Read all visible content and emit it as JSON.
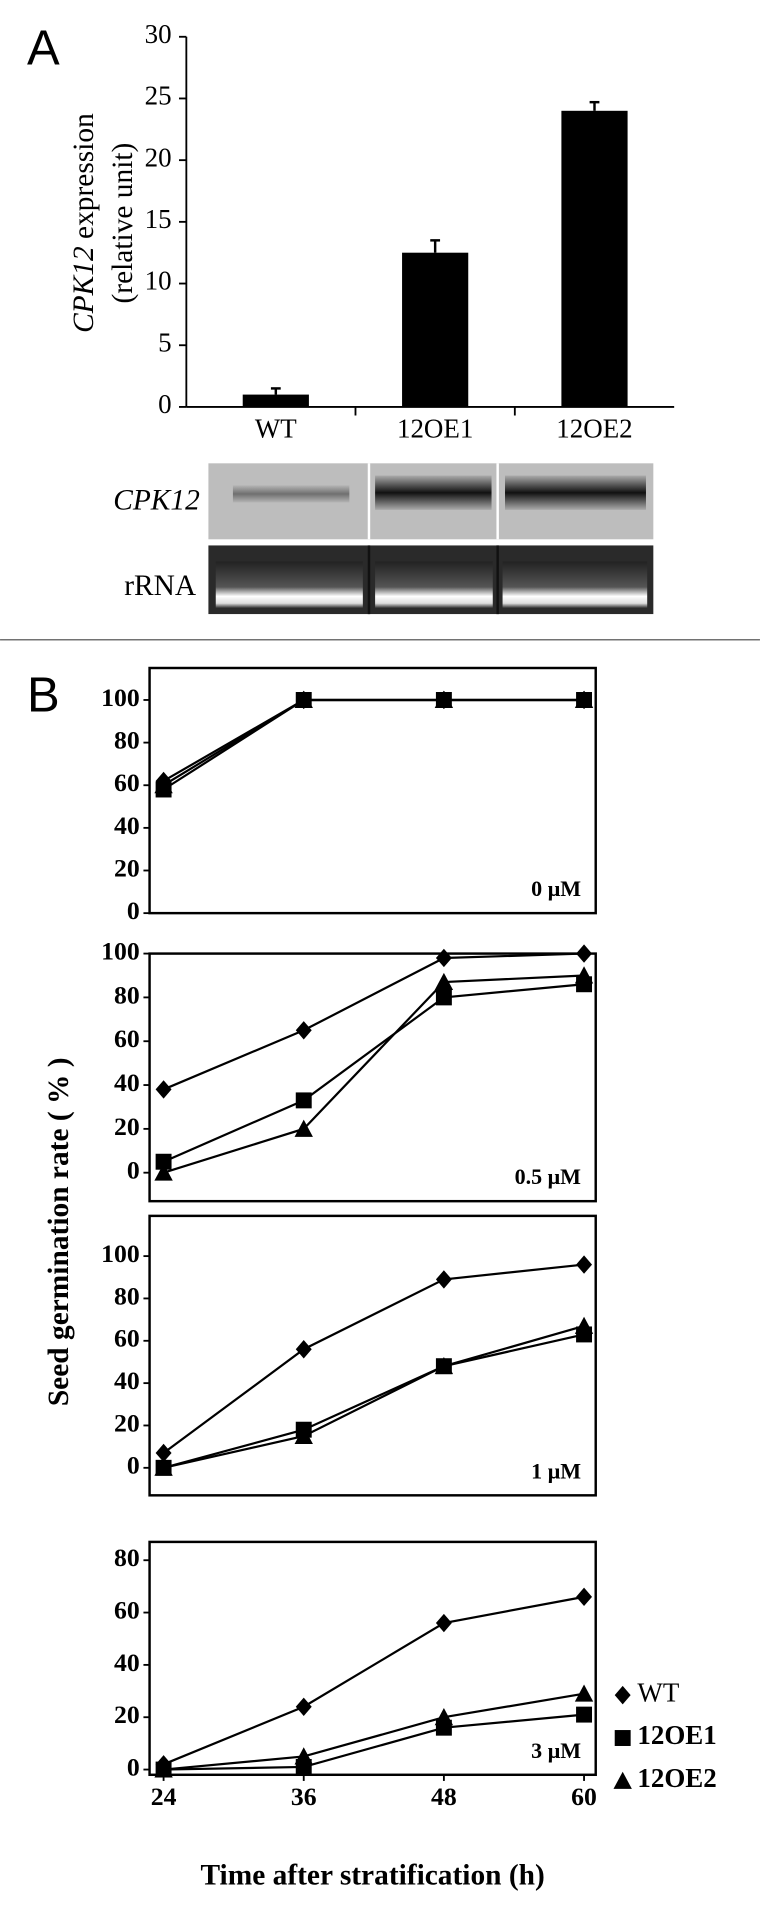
{
  "panel_labels": [
    "A",
    "B"
  ],
  "gel": {
    "labels": [
      "CPK12",
      "rRNA"
    ]
  },
  "shared_axes": {
    "y_label": "Seed germination rate ( % )",
    "x_label": "Time after stratification (h)"
  },
  "chart_data": [
    {
      "type": "bar",
      "ylabel": [
        "CPK12",
        " expression",
        "(relative unit)"
      ],
      "categories": [
        "WT",
        "12OE1",
        "12OE2"
      ],
      "values": [
        1,
        12.5,
        24
      ],
      "errors": [
        0.5,
        1,
        0.7
      ],
      "color": "#000000",
      "ylim": [
        0,
        30
      ],
      "yticks": [
        0,
        5,
        10,
        15,
        20,
        25,
        30
      ]
    },
    {
      "type": "line",
      "annotation": "0 μM",
      "x": [
        24,
        36,
        48,
        60
      ],
      "xlim": [
        22.8,
        61
      ],
      "ylim": [
        0,
        115
      ],
      "yticks": [
        0,
        20,
        40,
        60,
        80,
        100
      ],
      "series": [
        {
          "color": "#000000",
          "marker": "diamond",
          "values": [
            62,
            100,
            100,
            100
          ]
        },
        {
          "color": "#000000",
          "marker": "square",
          "values": [
            58,
            100,
            100,
            100
          ]
        },
        {
          "color": "#000000",
          "marker": "triangle",
          "values": [
            60,
            100,
            100,
            100
          ]
        }
      ]
    },
    {
      "type": "line",
      "annotation": "0.5 μM",
      "x": [
        24,
        36,
        48,
        60
      ],
      "xlim": [
        22.8,
        61
      ],
      "ylim": [
        -13,
        100
      ],
      "yticks": [
        0,
        20,
        40,
        60,
        80,
        100
      ],
      "series": [
        {
          "color": "#000000",
          "marker": "diamond",
          "values": [
            38,
            65,
            98,
            100
          ]
        },
        {
          "color": "#000000",
          "marker": "square",
          "values": [
            5,
            33,
            80,
            86
          ]
        },
        {
          "color": "#000000",
          "marker": "triangle",
          "values": [
            0,
            20,
            87,
            90
          ]
        }
      ]
    },
    {
      "type": "line",
      "annotation": "1 μM",
      "x": [
        24,
        36,
        48,
        60
      ],
      "xlim": [
        22.8,
        61
      ],
      "ylim": [
        -13,
        119
      ],
      "yticks": [
        0,
        20,
        40,
        60,
        80,
        100
      ],
      "series": [
        {
          "color": "#000000",
          "marker": "diamond",
          "values": [
            7,
            56,
            89,
            96
          ]
        },
        {
          "color": "#000000",
          "marker": "square",
          "values": [
            0,
            18,
            48,
            63
          ]
        },
        {
          "color": "#000000",
          "marker": "triangle",
          "values": [
            0,
            15,
            48,
            67
          ]
        }
      ]
    },
    {
      "type": "line",
      "annotation": "3 μM",
      "x": [
        24,
        36,
        48,
        60
      ],
      "xlim": [
        22.8,
        61
      ],
      "ylim": [
        -2,
        87
      ],
      "yticks": [
        0,
        20,
        40,
        60,
        80
      ],
      "xticks": [
        24,
        36,
        48,
        60
      ],
      "legend": "right",
      "series": [
        {
          "name": "WT",
          "color": "#000000",
          "marker": "diamond",
          "values": [
            2,
            24,
            56,
            66
          ]
        },
        {
          "name": "12OE1",
          "color": "#000000",
          "marker": "square",
          "values": [
            0,
            1,
            16,
            21
          ]
        },
        {
          "name": "12OE2",
          "color": "#000000",
          "marker": "triangle",
          "values": [
            0,
            5,
            20,
            29
          ]
        }
      ]
    }
  ]
}
